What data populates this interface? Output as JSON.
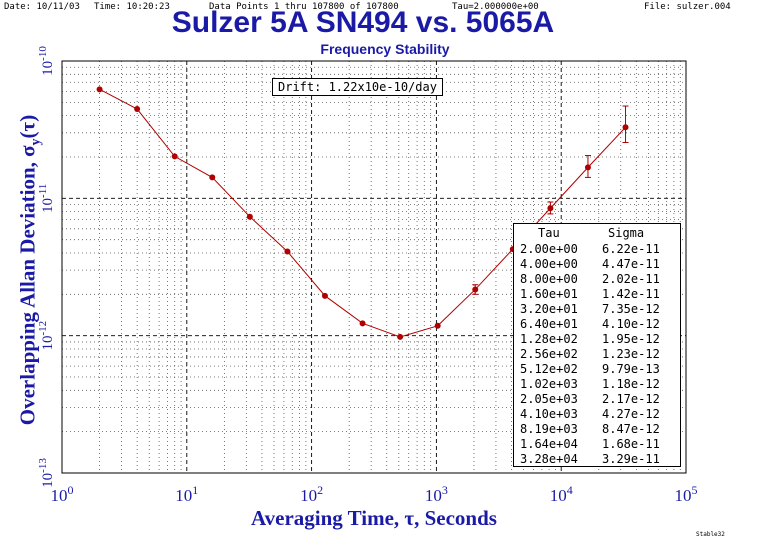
{
  "header": {
    "date": "Date: 10/11/03",
    "time": "Time: 10:20:23",
    "data_points": "Data Points 1 thru 107800 of 107800",
    "tau": "Tau=2.000000e+00",
    "file": "File: sulzer.004"
  },
  "annotation": "Drift: 1.22x10e-10/day",
  "credit": "Stable32",
  "chart_data": {
    "type": "scatter",
    "title": "Sulzer 5A SN494 vs. 5065A",
    "subtitle": "Frequency Stability",
    "xlabel": "Averaging Time, τ, Seconds",
    "ylabel": "Overlapping Allan Deviation, σy(τ)",
    "x_scale": "log",
    "y_scale": "log",
    "xlim": [
      1,
      100000
    ],
    "ylim": [
      1e-13,
      1e-10
    ],
    "grid": true,
    "x_ticks": [
      {
        "value": 1,
        "base": "10",
        "exp": "0"
      },
      {
        "value": 10,
        "base": "10",
        "exp": "1"
      },
      {
        "value": 100,
        "base": "10",
        "exp": "2"
      },
      {
        "value": 1000,
        "base": "10",
        "exp": "3"
      },
      {
        "value": 10000,
        "base": "10",
        "exp": "4"
      },
      {
        "value": 100000,
        "base": "10",
        "exp": "5"
      }
    ],
    "y_ticks": [
      {
        "value": 1e-13,
        "base": "10",
        "exp": "-13"
      },
      {
        "value": 1e-12,
        "base": "10",
        "exp": "-12"
      },
      {
        "value": 1e-11,
        "base": "10",
        "exp": "-11"
      },
      {
        "value": 1e-10,
        "base": "10",
        "exp": "-10"
      }
    ],
    "points": [
      {
        "tau": 2,
        "sigma": 6.22e-11
      },
      {
        "tau": 4,
        "sigma": 4.47e-11
      },
      {
        "tau": 8,
        "sigma": 2.02e-11
      },
      {
        "tau": 16,
        "sigma": 1.42e-11
      },
      {
        "tau": 32,
        "sigma": 7.35e-12
      },
      {
        "tau": 64,
        "sigma": 4.1e-12
      },
      {
        "tau": 128,
        "sigma": 1.95e-12
      },
      {
        "tau": 256,
        "sigma": 1.23e-12
      },
      {
        "tau": 512,
        "sigma": 9.79e-13
      },
      {
        "tau": 1024,
        "sigma": 1.18e-12
      },
      {
        "tau": 2048,
        "sigma": 2.17e-12
      },
      {
        "tau": 4096,
        "sigma": 4.27e-12
      },
      {
        "tau": 8192,
        "sigma": 8.47e-12
      },
      {
        "tau": 16384,
        "sigma": 1.68e-11
      },
      {
        "tau": 32768,
        "sigma": 3.29e-11
      }
    ],
    "error_bars": [
      {
        "tau": 2048,
        "lo": 2e-12,
        "hi": 2.35e-12
      },
      {
        "tau": 8192,
        "lo": 7.7e-12,
        "hi": 9.4e-12
      },
      {
        "tau": 16384,
        "lo": 1.42e-11,
        "hi": 2.05e-11
      },
      {
        "tau": 32768,
        "lo": 2.55e-11,
        "hi": 4.7e-11
      }
    ],
    "colors": {
      "series": "#b00000",
      "title": "#1a1aa6"
    }
  },
  "data_table": {
    "headers": [
      "Tau",
      "Sigma"
    ],
    "rows": [
      [
        "2.00e+00",
        "6.22e-11"
      ],
      [
        "4.00e+00",
        "4.47e-11"
      ],
      [
        "8.00e+00",
        "2.02e-11"
      ],
      [
        "1.60e+01",
        "1.42e-11"
      ],
      [
        "3.20e+01",
        "7.35e-12"
      ],
      [
        "6.40e+01",
        "4.10e-12"
      ],
      [
        "1.28e+02",
        "1.95e-12"
      ],
      [
        "2.56e+02",
        "1.23e-12"
      ],
      [
        "5.12e+02",
        "9.79e-13"
      ],
      [
        "1.02e+03",
        "1.18e-12"
      ],
      [
        "2.05e+03",
        "2.17e-12"
      ],
      [
        "4.10e+03",
        "4.27e-12"
      ],
      [
        "8.19e+03",
        "8.47e-12"
      ],
      [
        "1.64e+04",
        "1.68e-11"
      ],
      [
        "3.28e+04",
        "3.29e-11"
      ]
    ]
  }
}
